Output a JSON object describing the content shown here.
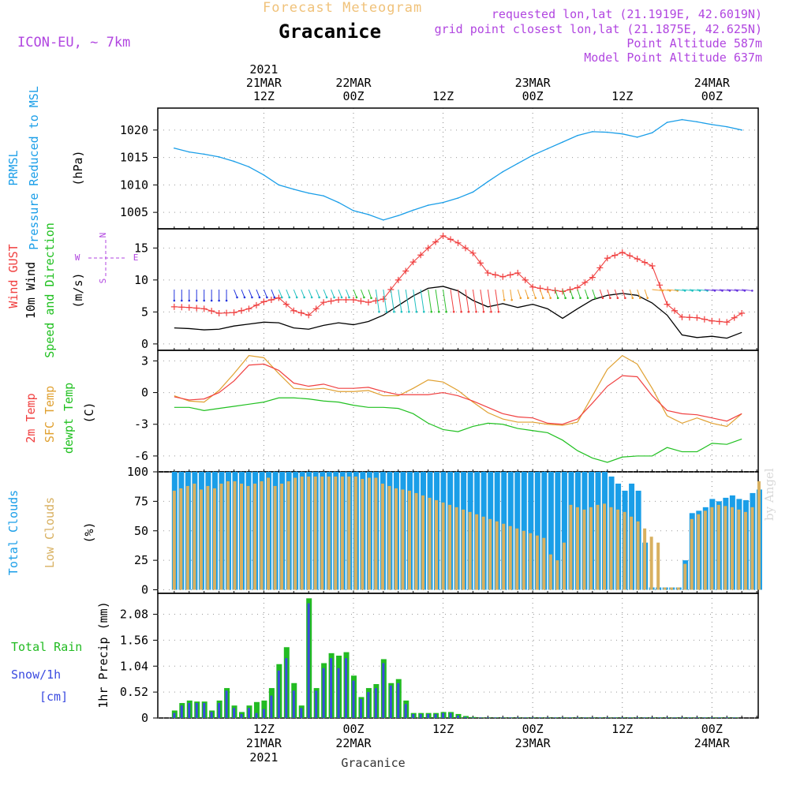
{
  "header": {
    "forecast_label": "Forecast Meteogram",
    "location": "Gracanice",
    "model": "ICON-EU, ~ 7km",
    "requested": "requested lon,lat (21.1919E, 42.6019N)",
    "gridpoint": "grid point closest lon,lat (21.1875E, 42.625N)",
    "point_altitude": "Point Altitude 587m",
    "model_altitude": "Model Point Altitude 637m",
    "signature": "by Angel"
  },
  "time_axis": {
    "top_labels": [
      {
        "t": 12,
        "lines": [
          "2021",
          "21MAR",
          "12Z"
        ]
      },
      {
        "t": 24,
        "lines": [
          "22MAR",
          "00Z"
        ]
      },
      {
        "t": 36,
        "lines": [
          "12Z"
        ]
      },
      {
        "t": 48,
        "lines": [
          "23MAR",
          "00Z"
        ]
      },
      {
        "t": 60,
        "lines": [
          "12Z"
        ]
      },
      {
        "t": 72,
        "lines": [
          "24MAR",
          "00Z"
        ]
      }
    ],
    "bottom_labels": [
      {
        "t": 12,
        "lines": [
          "12Z",
          "21MAR",
          "2021"
        ]
      },
      {
        "t": 24,
        "lines": [
          "00Z",
          "22MAR"
        ]
      },
      {
        "t": 36,
        "lines": [
          "12Z"
        ]
      },
      {
        "t": 48,
        "lines": [
          "00Z",
          "23MAR"
        ]
      },
      {
        "t": 60,
        "lines": [
          "12Z"
        ]
      },
      {
        "t": 72,
        "lines": [
          "00Z",
          "24MAR"
        ]
      }
    ],
    "footer": "Gracanice"
  },
  "colors": {
    "pressure": "#1a9ee8",
    "gust": "#f04040",
    "wind10m": "#000000",
    "temp2m": "#f04040",
    "sfc": "#e0a030",
    "dewpt": "#20c020",
    "total_clouds": "#1a9ee8",
    "low_clouds": "#d8b060",
    "rain": "#22bb22",
    "snow": "#3a4ae0",
    "model_text": "#b146e0"
  },
  "chart_data": [
    {
      "type": "line",
      "id": "pressure",
      "ylabels": [
        "PRMSL",
        "Pressure Reduced to MSL"
      ],
      "unit": "(hPa)",
      "ylim": [
        1002,
        1024
      ],
      "yticks": [
        1005,
        1010,
        1015,
        1020
      ],
      "x_hours": [
        0,
        2,
        4,
        6,
        8,
        10,
        12,
        14,
        16,
        18,
        20,
        22,
        24,
        26,
        28,
        30,
        32,
        34,
        36,
        38,
        40,
        42,
        44,
        46,
        48,
        50,
        52,
        54,
        56,
        58,
        60,
        62,
        64,
        66,
        68,
        70,
        72,
        74,
        76
      ],
      "values": [
        1016.7,
        1016.0,
        1015.6,
        1015.1,
        1014.3,
        1013.3,
        1011.8,
        1010.0,
        1009.2,
        1008.5,
        1008.0,
        1006.8,
        1005.3,
        1004.6,
        1003.6,
        1004.4,
        1005.4,
        1006.3,
        1006.8,
        1007.6,
        1008.7,
        1010.6,
        1012.4,
        1013.9,
        1015.4,
        1016.6,
        1017.8,
        1019.0,
        1019.7,
        1019.6,
        1019.3,
        1018.7,
        1019.5,
        1021.4,
        1021.9,
        1021.5,
        1021.0,
        1020.6,
        1020.0
      ]
    },
    {
      "type": "line",
      "id": "wind",
      "ylabels": [
        "Wind GUST",
        "10m Wind",
        "Speed and Direction"
      ],
      "unit": "(m/s)",
      "compass": {
        "n": "N",
        "s": "S",
        "e": "E",
        "w": "W"
      },
      "ylim": [
        -1,
        18
      ],
      "yticks": [
        0,
        5,
        10,
        15
      ],
      "x_hours": [
        0,
        2,
        4,
        6,
        8,
        10,
        12,
        14,
        16,
        18,
        20,
        22,
        24,
        26,
        28,
        30,
        32,
        34,
        36,
        38,
        40,
        42,
        44,
        46,
        48,
        50,
        52,
        54,
        56,
        58,
        60,
        62,
        64,
        66,
        68,
        70,
        72,
        74,
        76
      ],
      "gust": [
        5.8,
        5.7,
        5.5,
        4.8,
        4.9,
        5.5,
        6.6,
        7.2,
        5.2,
        4.5,
        6.5,
        6.9,
        6.9,
        6.5,
        7.0,
        10.0,
        12.8,
        15.0,
        16.9,
        15.8,
        14.2,
        11.1,
        10.5,
        11.1,
        8.9,
        8.5,
        8.2,
        8.8,
        10.4,
        13.4,
        14.3,
        13.3,
        12.2,
        6.2,
        4.2,
        4.1,
        3.6,
        3.4,
        4.8
      ],
      "speed10m": [
        2.5,
        2.4,
        2.2,
        2.3,
        2.8,
        3.1,
        3.4,
        3.3,
        2.5,
        2.3,
        2.9,
        3.3,
        3.0,
        3.5,
        4.5,
        6.0,
        7.5,
        8.7,
        9.0,
        8.3,
        6.8,
        5.8,
        6.3,
        5.7,
        6.2,
        5.5,
        4.0,
        5.5,
        6.9,
        7.6,
        7.9,
        7.6,
        6.4,
        4.5,
        1.4,
        1.0,
        1.2,
        0.9,
        1.8
      ]
    },
    {
      "type": "line",
      "id": "temperature",
      "ylabels": [
        "2m Temp",
        "SFC Temp",
        "dewpt Temp"
      ],
      "unit": "(C)",
      "ylim": [
        -7.5,
        4
      ],
      "yticks": [
        3,
        0,
        -3,
        -6
      ],
      "x_hours": [
        0,
        2,
        4,
        6,
        8,
        10,
        12,
        14,
        16,
        18,
        20,
        22,
        24,
        26,
        28,
        30,
        32,
        34,
        36,
        38,
        40,
        42,
        44,
        46,
        48,
        50,
        52,
        54,
        56,
        58,
        60,
        62,
        64,
        66,
        68,
        70,
        72,
        74,
        76
      ],
      "temp2m": [
        -0.4,
        -0.7,
        -0.6,
        0.0,
        1.1,
        2.6,
        2.7,
        2.1,
        0.9,
        0.6,
        0.8,
        0.4,
        0.4,
        0.5,
        0.1,
        -0.2,
        -0.2,
        -0.2,
        0.0,
        -0.3,
        -0.8,
        -1.4,
        -2.0,
        -2.3,
        -2.4,
        -2.9,
        -3.0,
        -2.5,
        -1.0,
        0.6,
        1.6,
        1.5,
        -0.3,
        -1.7,
        -2.0,
        -2.1,
        -2.4,
        -2.7,
        -2.0
      ],
      "sfc": [
        -0.3,
        -0.8,
        -0.9,
        0.2,
        1.8,
        3.5,
        3.3,
        1.8,
        0.4,
        0.3,
        0.4,
        0.1,
        0.1,
        0.2,
        -0.3,
        -0.3,
        0.4,
        1.2,
        1.0,
        0.2,
        -0.9,
        -1.9,
        -2.5,
        -2.8,
        -2.8,
        -3.0,
        -3.1,
        -2.8,
        -0.3,
        2.2,
        3.5,
        2.7,
        0.4,
        -2.2,
        -2.9,
        -2.4,
        -2.9,
        -3.2,
        -2.0
      ],
      "dewpt": [
        -1.4,
        -1.4,
        -1.7,
        -1.5,
        -1.3,
        -1.1,
        -0.9,
        -0.5,
        -0.5,
        -0.6,
        -0.8,
        -0.9,
        -1.2,
        -1.4,
        -1.4,
        -1.5,
        -2.0,
        -2.9,
        -3.5,
        -3.7,
        -3.2,
        -2.9,
        -3.0,
        -3.4,
        -3.6,
        -3.8,
        -4.5,
        -5.5,
        -6.2,
        -6.6,
        -6.1,
        -6.0,
        -6.0,
        -5.2,
        -5.6,
        -5.6,
        -4.8,
        -4.9,
        -4.4
      ]
    },
    {
      "type": "bar",
      "id": "clouds",
      "ylabels": [
        "Total Clouds",
        "Low Clouds"
      ],
      "unit": "(%)",
      "ylim": [
        -3,
        100
      ],
      "yticks": [
        0,
        25,
        50,
        75,
        100
      ],
      "x_start_hour": 0,
      "step_hours": 1,
      "total": [
        100,
        100,
        100,
        100,
        100,
        100,
        100,
        100,
        100,
        100,
        100,
        100,
        100,
        100,
        100,
        100,
        100,
        100,
        100,
        100,
        100,
        100,
        100,
        100,
        100,
        100,
        100,
        100,
        100,
        100,
        100,
        100,
        100,
        100,
        100,
        100,
        100,
        100,
        100,
        100,
        100,
        100,
        100,
        100,
        100,
        100,
        100,
        100,
        100,
        100,
        100,
        100,
        100,
        100,
        100,
        100,
        100,
        100,
        100,
        100,
        100,
        100,
        100,
        100,
        100,
        96,
        90,
        84,
        90,
        84,
        40,
        2,
        2,
        2,
        2,
        2,
        25,
        65,
        67,
        70,
        77,
        75,
        78,
        80,
        77,
        76,
        82,
        85
      ],
      "low": [
        84,
        86,
        88,
        90,
        85,
        88,
        86,
        90,
        92,
        92,
        90,
        88,
        90,
        92,
        95,
        88,
        90,
        92,
        95,
        96,
        96,
        96,
        96,
        96,
        96,
        96,
        96,
        96,
        94,
        95,
        95,
        90,
        88,
        86,
        85,
        84,
        82,
        80,
        78,
        76,
        74,
        72,
        70,
        68,
        66,
        64,
        62,
        60,
        58,
        56,
        54,
        52,
        50,
        48,
        46,
        44,
        30,
        25,
        40,
        72,
        70,
        68,
        70,
        72,
        73,
        70,
        68,
        66,
        62,
        58,
        52,
        45,
        40,
        2,
        2,
        2,
        22,
        60,
        64,
        67,
        70,
        72,
        71,
        70,
        68,
        66,
        70,
        92
      ]
    },
    {
      "type": "bar",
      "id": "precip",
      "ylabels": [
        "Total Rain",
        "Snow/1h",
        "[cm]"
      ],
      "unit": "1hr Precip (mm)",
      "ylim": [
        0,
        2.5
      ],
      "yticks": [
        0,
        0.52,
        1.04,
        1.56,
        2.08
      ],
      "ytick_labels": [
        "0",
        "0.52",
        "1.04",
        "1.56",
        "2.08"
      ],
      "x_start_hour": 0,
      "step_hours": 1,
      "rain": [
        0.15,
        0.3,
        0.35,
        0.33,
        0.33,
        0.15,
        0.35,
        0.6,
        0.25,
        0.12,
        0.25,
        0.32,
        0.35,
        0.6,
        1.08,
        1.42,
        0.7,
        0.25,
        2.4,
        0.6,
        1.1,
        1.3,
        1.25,
        1.32,
        0.85,
        0.42,
        0.6,
        0.68,
        1.18,
        0.7,
        0.78,
        0.35,
        0.1,
        0.1,
        0.1,
        0.1,
        0.12,
        0.12,
        0.08,
        0.04,
        0.02,
        0.01,
        0.01,
        0.01,
        0.01,
        0.01,
        0.01,
        0.01,
        0.01,
        0.01,
        0.01,
        0.01,
        0.01,
        0.01,
        0.01,
        0.01,
        0.01,
        0.01,
        0.01,
        0.01,
        0.01,
        0.01,
        0.01,
        0.01,
        0.01,
        0.01,
        0.01,
        0.01,
        0.01,
        0.01,
        0.01,
        0.01,
        0.01,
        0.01,
        0.01,
        0.01
      ],
      "snow": [
        0.1,
        0.25,
        0.3,
        0.3,
        0.3,
        0.12,
        0.3,
        0.55,
        0.2,
        0.08,
        0.2,
        0.1,
        0.18,
        0.45,
        0.95,
        1.2,
        0.55,
        0.2,
        2.3,
        0.55,
        1.0,
        1.2,
        1.0,
        1.2,
        0.75,
        0.38,
        0.52,
        0.6,
        1.1,
        0.65,
        0.7,
        0.28,
        0.08,
        0.08,
        0.08,
        0.08,
        0.1,
        0.1,
        0.05,
        0.02,
        0.01,
        0.01,
        0.01,
        0.01,
        0.01,
        0.01,
        0.01,
        0.01,
        0.01,
        0.01,
        0.01,
        0.01,
        0.01,
        0.01,
        0.01,
        0.01,
        0.01,
        0.01,
        0.01,
        0.01,
        0.01,
        0.01,
        0.01,
        0.01,
        0.01,
        0.01,
        0.01,
        0.01,
        0.01,
        0.01,
        0.01,
        0.01,
        0.01,
        0.01,
        0.01,
        0.01
      ]
    }
  ]
}
